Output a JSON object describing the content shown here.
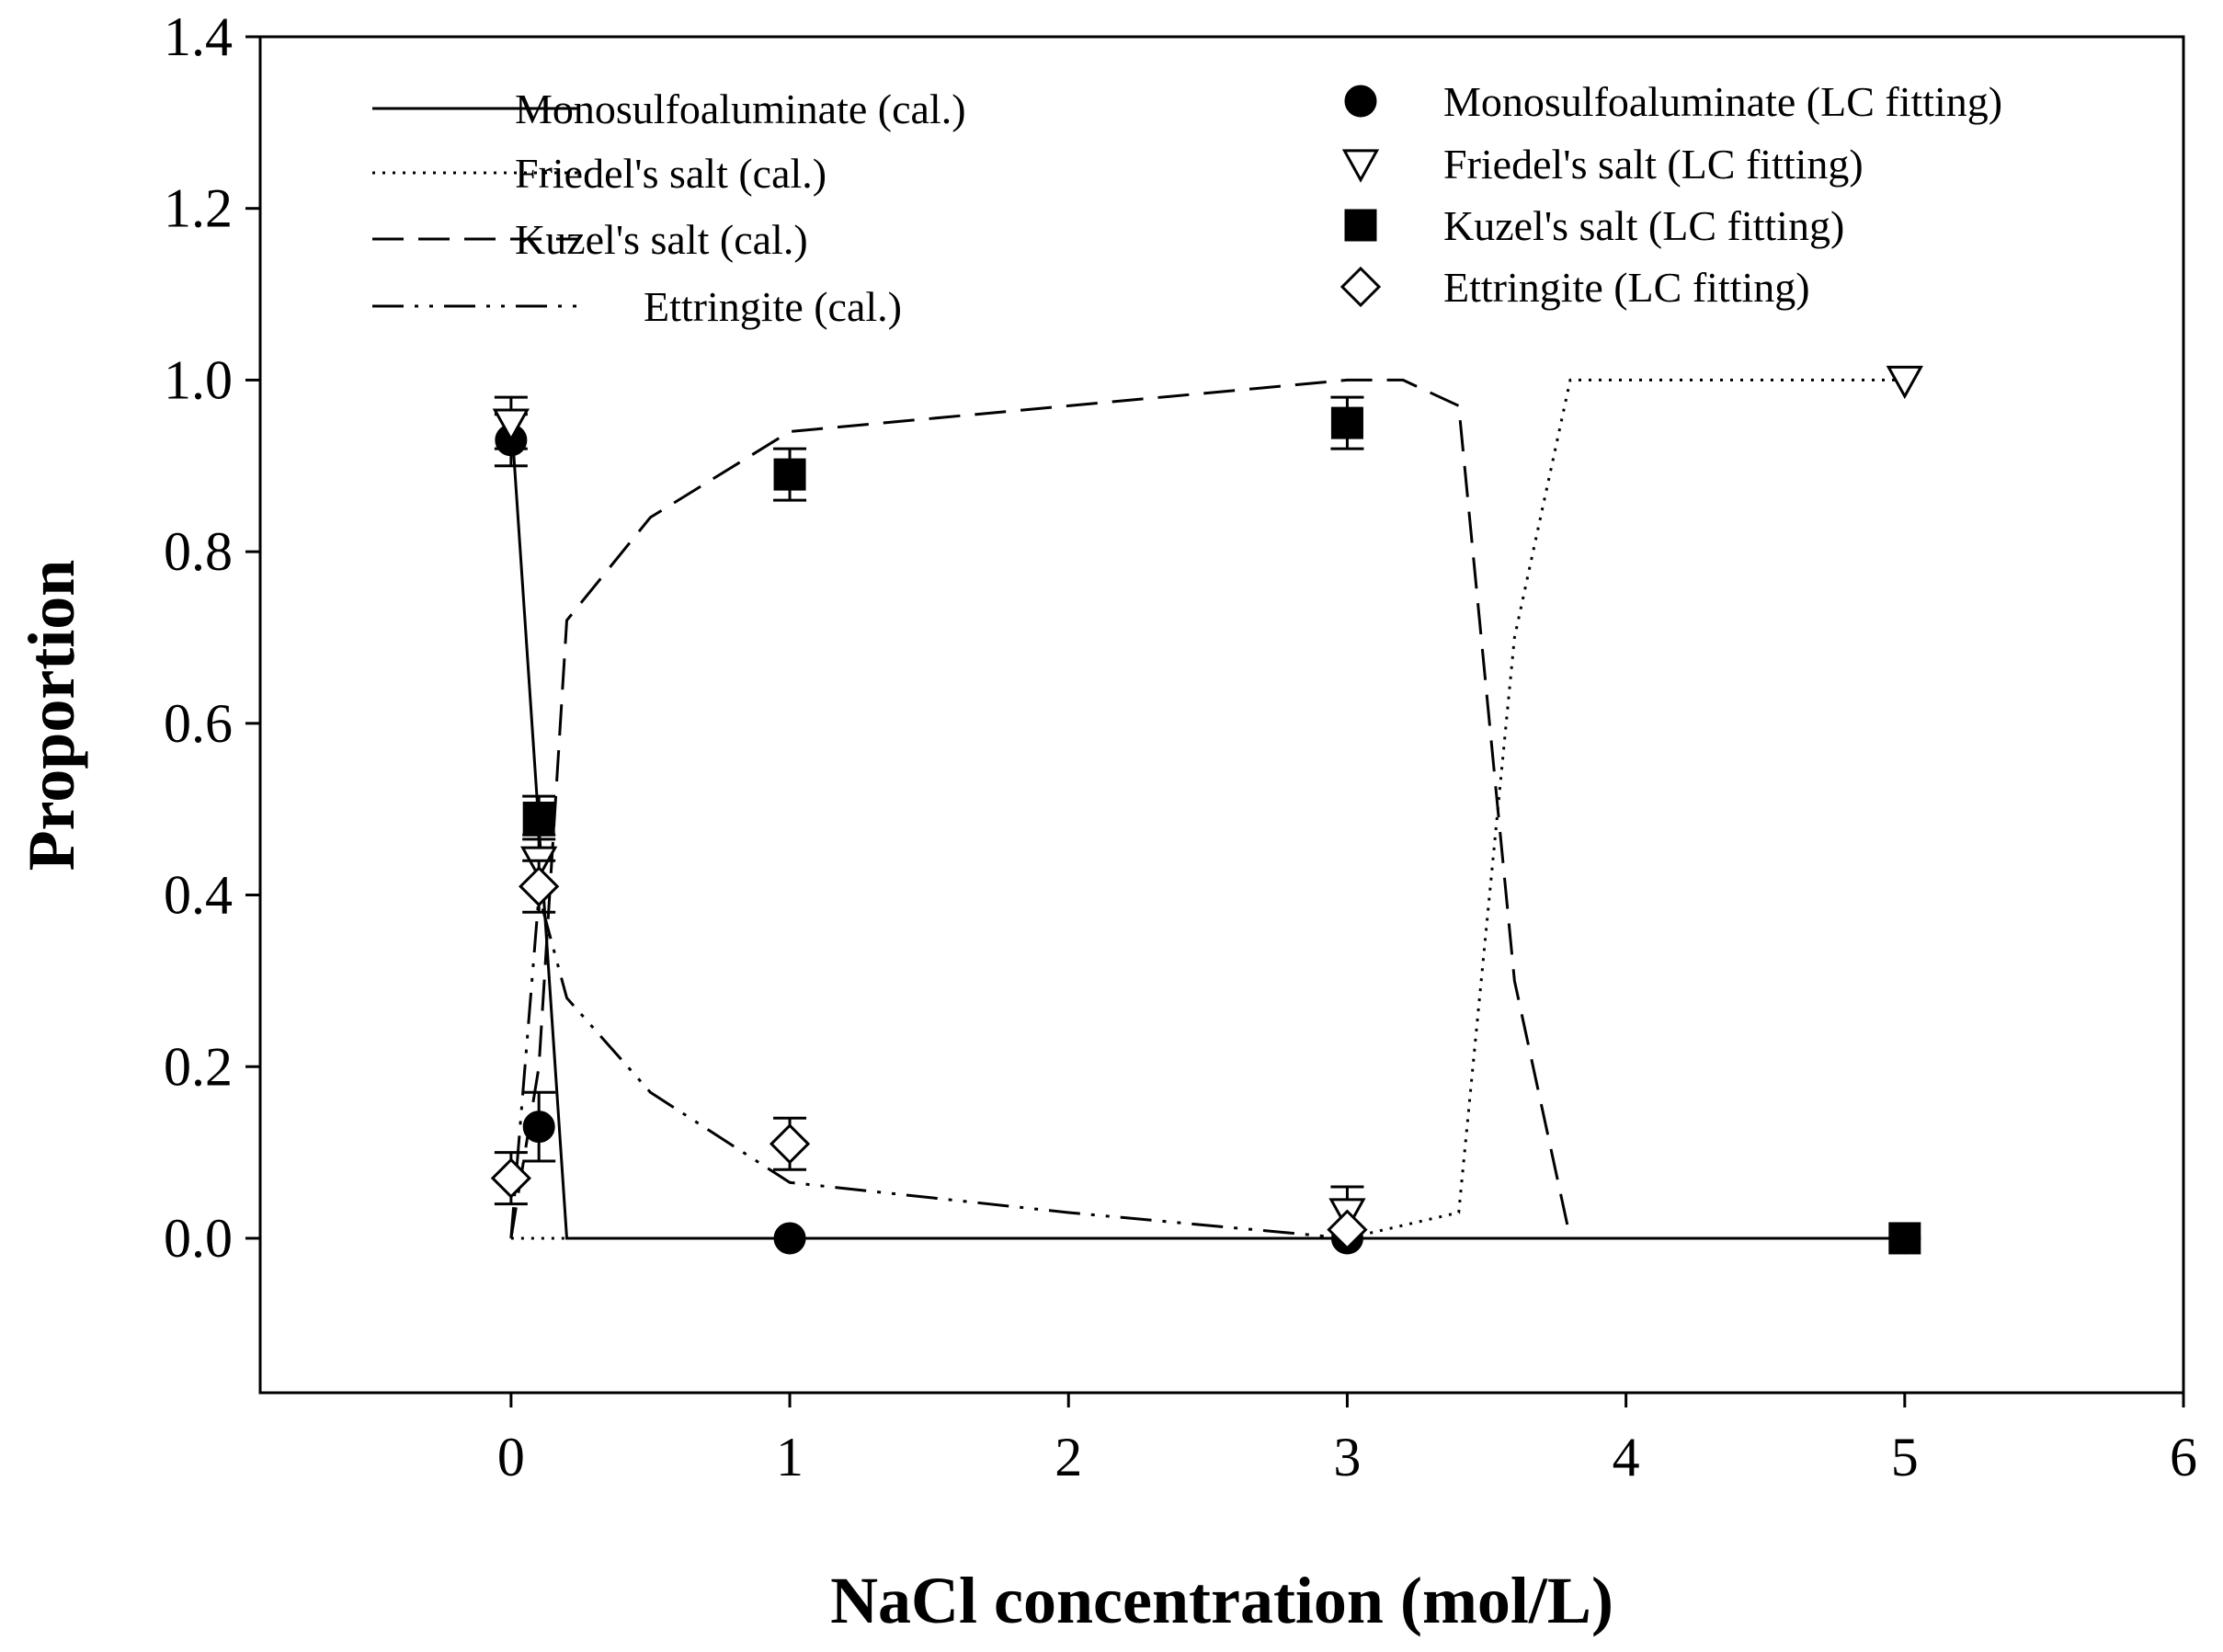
{
  "chart_data": {
    "type": "line",
    "title": "",
    "xlabel": "NaCl concentration (mol/L)",
    "ylabel": "Proportion",
    "xlim": [
      -0.9,
      6
    ],
    "ylim": [
      -0.18,
      1.4
    ],
    "xticks": [
      0,
      1,
      2,
      3,
      4,
      5,
      6
    ],
    "yticks": [
      0.0,
      0.2,
      0.4,
      0.6,
      0.8,
      1.0,
      1.2,
      1.4
    ],
    "xtick_labels": [
      "0",
      "1",
      "2",
      "3",
      "4",
      "5",
      "6"
    ],
    "ytick_labels": [
      "0.0",
      "0.2",
      "0.4",
      "0.6",
      "0.8",
      "1.0",
      "1.2",
      "1.4"
    ],
    "grid": false,
    "legend_placement": "top",
    "lines": [
      {
        "name": "Monosulfoaluminate (cal.)",
        "style": "solid",
        "x": [
          0,
          0.2,
          5
        ],
        "y": [
          0.96,
          0.0,
          0.0
        ]
      },
      {
        "name": "Friedel's salt (cal.)",
        "style": "dotted",
        "x": [
          0,
          0.1,
          3.0,
          3.4,
          3.6,
          3.8,
          5
        ],
        "y": [
          0.0,
          0.0,
          0.0,
          0.03,
          0.7,
          1.0,
          1.0
        ]
      },
      {
        "name": "Kuzel's salt (cal.)",
        "style": "dashed",
        "x": [
          0,
          0.1,
          0.2,
          0.5,
          1.0,
          3.0,
          3.2,
          3.4,
          3.6,
          3.8,
          5
        ],
        "y": [
          0.0,
          0.2,
          0.72,
          0.84,
          0.94,
          1.0,
          1.0,
          0.97,
          0.3,
          0.0,
          0.0
        ]
      },
      {
        "name": "Ettringite (cal.)",
        "style": "dashdotdot",
        "x": [
          0,
          0.1,
          0.2,
          0.5,
          1.0,
          2.0,
          3.0,
          3.2
        ],
        "y": [
          0.0,
          0.4,
          0.28,
          0.17,
          0.065,
          0.03,
          0.0,
          0.0
        ]
      }
    ],
    "points": [
      {
        "name": "Monosulfoaluminate (LC fitting)",
        "marker": "circle-filled",
        "x": [
          0,
          0.1,
          1,
          3,
          5
        ],
        "y": [
          0.93,
          0.13,
          0.0,
          0.0,
          0.0
        ],
        "err": [
          0.03,
          0.04,
          0,
          0,
          0
        ]
      },
      {
        "name": "Friedel's salt (LC fitting)",
        "marker": "triangle-down-open",
        "x": [
          0,
          0.1,
          3,
          5
        ],
        "y": [
          0.95,
          0.44,
          0.03,
          1.0
        ],
        "err": [
          0.03,
          0.03,
          0.03,
          0
        ]
      },
      {
        "name": "Kuzel's salt (LC fitting)",
        "marker": "square-filled",
        "x": [
          0.1,
          1,
          3,
          5
        ],
        "y": [
          0.49,
          0.89,
          0.95,
          0.0
        ],
        "err": [
          0.025,
          0.03,
          0.03,
          0
        ]
      },
      {
        "name": "Ettringite (LC fitting)",
        "marker": "diamond-open",
        "x": [
          0,
          0.1,
          1,
          3
        ],
        "y": [
          0.07,
          0.41,
          0.11,
          0.01
        ],
        "err": [
          0.03,
          0.03,
          0.03,
          0
        ]
      }
    ]
  }
}
